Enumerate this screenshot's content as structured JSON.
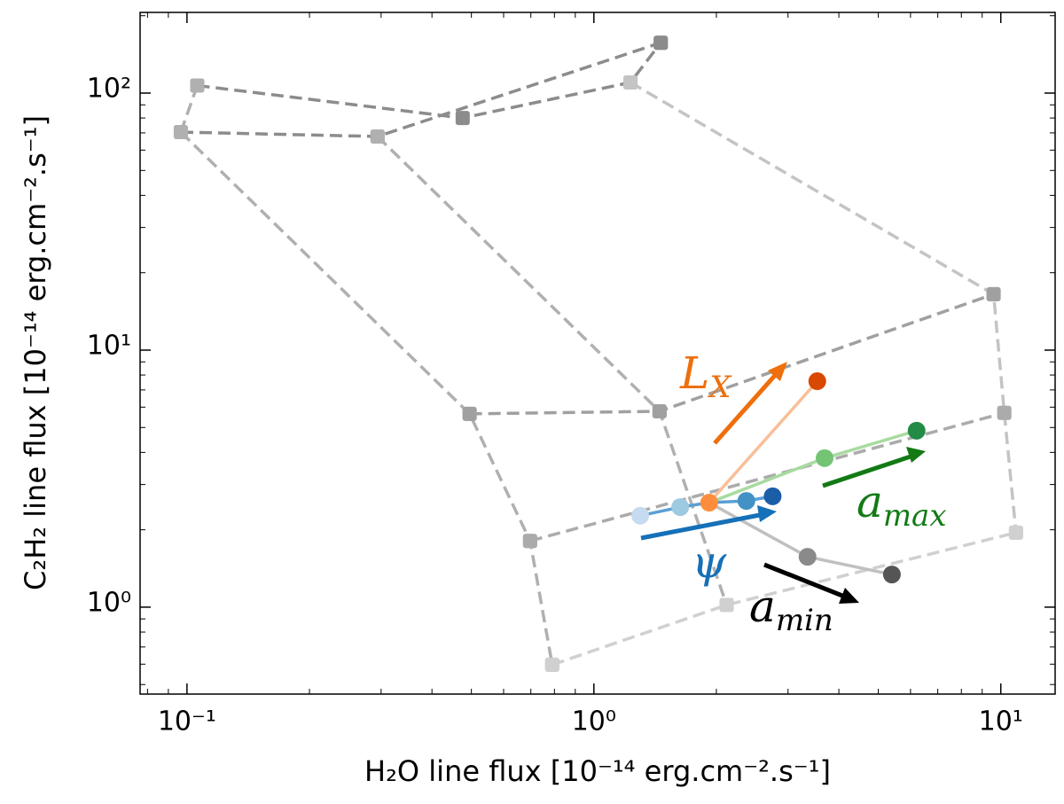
{
  "chart_data": {
    "type": "line",
    "xlabel": "H₂O line flux [10⁻¹⁴ erg.cm⁻².s⁻¹]",
    "ylabel": "C₂H₂ line flux [10⁻¹⁴ erg.cm⁻².s⁻¹]",
    "xscale": "log",
    "yscale": "log",
    "xlim": [
      0.0767,
      13.6
    ],
    "ylim": [
      0.459,
      206
    ],
    "xticks": [
      {
        "value": 0.1,
        "label": "10⁻¹"
      },
      {
        "value": 1,
        "label": "10⁰"
      },
      {
        "value": 10,
        "label": "10¹"
      }
    ],
    "yticks": [
      {
        "value": 1,
        "label": "10⁰"
      },
      {
        "value": 10,
        "label": "10¹"
      },
      {
        "value": 100,
        "label": "10²"
      }
    ],
    "xminorticks": [
      0.08,
      0.09,
      0.2,
      0.3,
      0.4,
      0.5,
      0.6,
      0.7,
      0.8,
      0.9,
      2,
      3,
      4,
      5,
      6,
      7,
      8,
      9
    ],
    "yminorticks": [
      0.5,
      0.6,
      0.7,
      0.8,
      0.9,
      2,
      3,
      4,
      5,
      6,
      7,
      8,
      9,
      20,
      30,
      40,
      50,
      60,
      70,
      80,
      90,
      200
    ],
    "series": [
      {
        "x": [
          0.106,
          0.476,
          1.23,
          1.46
        ],
        "values": [
          107,
          80,
          110,
          157
        ],
        "color": "#8c8c8c",
        "style": "dashed",
        "marker": "square"
      },
      {
        "x": [
          0.0966,
          0.294,
          1.46
        ],
        "values": [
          70.5,
          67.8,
          157
        ],
        "color": "#8c8c8c",
        "style": "dashed",
        "marker": "square"
      },
      {
        "x": [
          0.106,
          0.0966
        ],
        "values": [
          107,
          70.5
        ],
        "color": "#b0b0b0",
        "style": "dashed",
        "marker": "square"
      },
      {
        "x": [
          0.0966,
          0.495,
          0.697,
          0.79
        ],
        "values": [
          70.5,
          5.65,
          1.81,
          0.597
        ],
        "color": "#b0b0b0",
        "style": "dashed",
        "marker": "square"
      },
      {
        "x": [
          0.294,
          1.45,
          2.12
        ],
        "values": [
          67.8,
          5.78,
          1.02
        ],
        "color": "#b0b0b0",
        "style": "dashed",
        "marker": "square"
      },
      {
        "x": [
          1.23,
          9.6,
          10.2,
          10.9
        ],
        "values": [
          110,
          16.5,
          5.7,
          1.95
        ],
        "color": "#c4c4c4",
        "style": "dashed",
        "marker": "square"
      },
      {
        "x": [
          0.495,
          1.45,
          9.6
        ],
        "values": [
          5.65,
          5.78,
          16.5
        ],
        "color": "#a0a0a0",
        "style": "dashed",
        "marker": "square"
      },
      {
        "x": [
          0.697,
          10.2
        ],
        "values": [
          1.81,
          5.7
        ],
        "color": "#ababab",
        "style": "dashed",
        "marker": "square"
      },
      {
        "x": [
          0.79,
          2.12,
          10.9
        ],
        "values": [
          0.597,
          1.02,
          1.95
        ],
        "color": "#d0d0d0",
        "style": "dashed",
        "marker": "square"
      },
      {
        "x": [
          1.92,
          3.35,
          5.4
        ],
        "values": [
          2.55,
          1.57,
          1.34
        ],
        "color": "#c0c0c0",
        "style": "solid",
        "marker": "circle",
        "marker_colors": [
          null,
          "#8a8a8a",
          "#555555"
        ]
      },
      {
        "x": [
          1.3,
          1.63,
          1.92,
          2.37,
          2.75
        ],
        "values": [
          2.27,
          2.45,
          2.55,
          2.59,
          2.7
        ],
        "color": "#5a9fd4",
        "style": "solid",
        "marker": "circle",
        "marker_colors": [
          "#c6dbef",
          "#9ecae1",
          null,
          "#4292c6",
          "#1a5ea8"
        ]
      },
      {
        "x": [
          1.92,
          3.69,
          6.21
        ],
        "values": [
          2.55,
          3.8,
          4.86
        ],
        "color": "#a8dba0",
        "style": "solid",
        "marker": "circle",
        "marker_colors": [
          null,
          "#74c476",
          "#238b45"
        ]
      },
      {
        "x": [
          1.92,
          3.54
        ],
        "values": [
          2.55,
          7.57
        ],
        "color": "#f9bf98",
        "style": "solid",
        "marker": "circle",
        "marker_colors": [
          "#fd8d3c",
          "#d94801"
        ]
      }
    ],
    "annotations": [
      {
        "text": "L",
        "sub": "X",
        "color": "#ee6f0c"
      },
      {
        "text": "a",
        "sub": "max",
        "color": "#137a16"
      },
      {
        "text": "ψ",
        "color": "#1570b8"
      },
      {
        "text": "a",
        "sub": "min",
        "color": "#000000"
      }
    ]
  }
}
